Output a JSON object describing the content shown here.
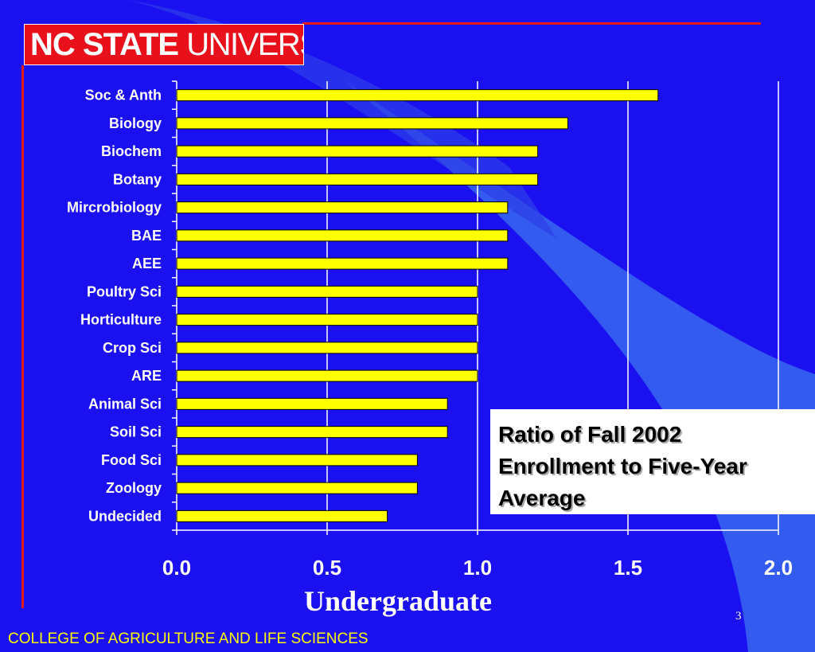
{
  "logo": {
    "part1": "NC STATE",
    "part2": "UNIVERSITY"
  },
  "annotation": {
    "lines": [
      "Ratio of Fall 2002",
      "Enrollment to Five-Year",
      "Average"
    ]
  },
  "footer": "COLLEGE OF AGRICULTURE AND LIFE SCIENCES",
  "page_number": "3",
  "colors": {
    "background": "#1a10f0",
    "bar_fill": "#ffff00",
    "bar_stroke": "#000000",
    "accent_red": "#e8111b",
    "footer_text": "#ffff00"
  },
  "chart_data": {
    "type": "bar",
    "orientation": "horizontal",
    "title": "",
    "xlabel": "Undergraduate",
    "ylabel": "",
    "xlim": [
      0,
      2
    ],
    "xticks": [
      "0.0",
      "0.5",
      "1.0",
      "1.5",
      "2.0"
    ],
    "grid": true,
    "categories": [
      "Soc & Anth",
      "Biology",
      "Biochem",
      "Botany",
      "Mircrobiology",
      "BAE",
      "AEE",
      "Poultry Sci",
      "Horticulture",
      "Crop Sci",
      "ARE",
      "Animal Sci",
      "Soil Sci",
      "Food Sci",
      "Zoology",
      "Undecided"
    ],
    "values": [
      1.6,
      1.3,
      1.2,
      1.2,
      1.1,
      1.1,
      1.1,
      1.0,
      1.0,
      1.0,
      1.0,
      0.9,
      0.9,
      0.8,
      0.8,
      0.7
    ]
  }
}
